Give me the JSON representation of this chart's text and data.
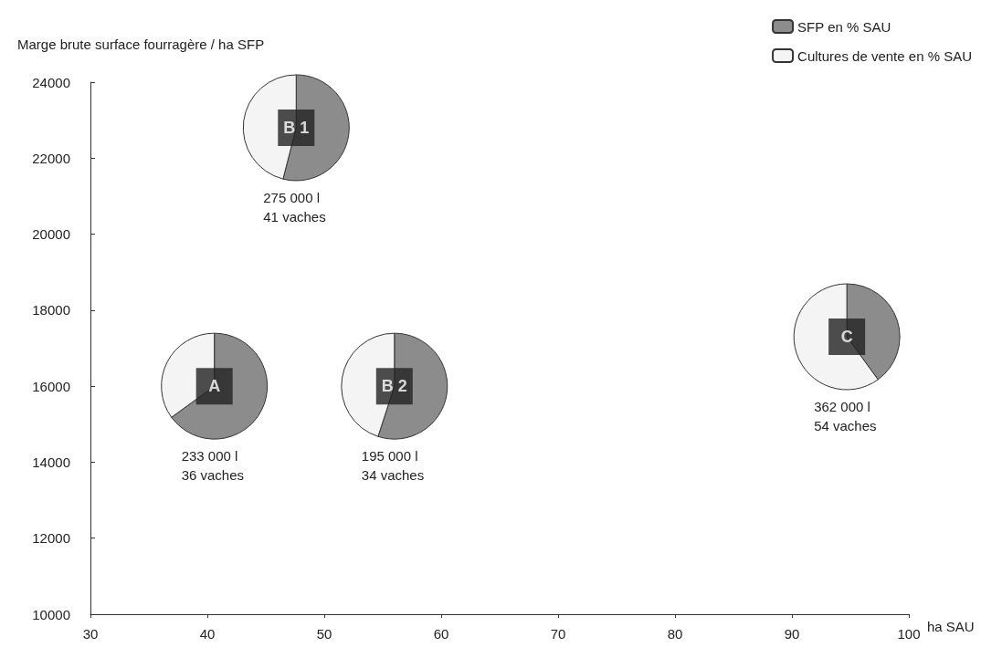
{
  "chart_data": [
    {
      "type": "scatter",
      "xlabel": "ha SAU",
      "ylabel": "Marge brute surface fourragère / ha SFP",
      "xlim": [
        30,
        100
      ],
      "xticks": [
        30,
        40,
        50,
        60,
        70,
        80,
        90,
        100
      ],
      "ylim": [
        10000,
        24000
      ],
      "yticks": [
        10000,
        12000,
        14000,
        16000,
        18000,
        20000,
        22000,
        24000
      ],
      "grid": false,
      "marker": "square",
      "x": [
        40.6,
        47.6,
        56,
        94.7
      ],
      "values": [
        16000,
        22800,
        16000,
        17300
      ],
      "annotations": [
        "233 000 l\n36 vaches",
        "275 000 l\n41 vaches",
        "195 000 l\n34 vaches",
        "362 000 l\n54 vaches"
      ]
    },
    {
      "type": "pie",
      "title": "A",
      "categories": [
        "SFP en % SAU",
        "Cultures de vente en % SAU"
      ],
      "values": [
        65,
        35
      ],
      "colors": [
        "#8c8c8c",
        "#f4f4f4"
      ],
      "legend": "top right"
    },
    {
      "type": "pie",
      "title": "B 1",
      "values": [
        54,
        46
      ],
      "colors": [
        "#8c8c8c",
        "#f4f4f4"
      ]
    },
    {
      "type": "pie",
      "title": "B 2",
      "values": [
        55,
        45
      ],
      "colors": [
        "#8c8c8c",
        "#f4f4f4"
      ]
    },
    {
      "type": "pie",
      "title": "C",
      "values": [
        40,
        60
      ],
      "colors": [
        "#8c8c8c",
        "#f4f4f4"
      ]
    }
  ]
}
